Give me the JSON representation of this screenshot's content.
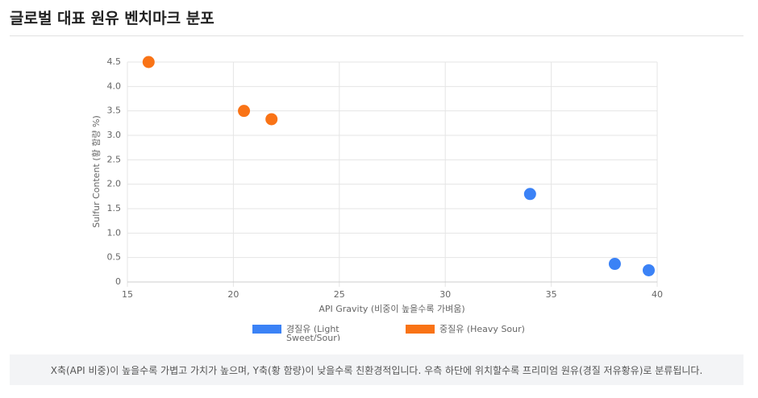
{
  "title": "글로벌 대표 원유 벤치마크 분포",
  "chart_data": {
    "type": "scatter",
    "xlabel": "API Gravity (비중이 높을수록 가벼움)",
    "ylabel": "Sulfur Content (황 함량 %)",
    "xlim": [
      15,
      40
    ],
    "xticks": [
      15,
      20,
      25,
      30,
      35,
      40
    ],
    "ylim": [
      0,
      4.5
    ],
    "yticks": [
      0,
      0.5,
      {
        "value": 1,
        "label": "1.0"
      },
      1.5,
      {
        "value": 2,
        "label": "2.0"
      },
      2.5,
      {
        "value": 3,
        "label": "3.0"
      },
      3.5,
      {
        "value": 4,
        "label": "4.0"
      },
      4.5
    ],
    "grid": true,
    "series": [
      {
        "name": "경질유 (Light Sweet/Sour)",
        "color": "#3b82f6",
        "x": [
          34,
          38,
          39.6
        ],
        "values": [
          1.8,
          0.37,
          0.24
        ]
      },
      {
        "name": "중질유 (Heavy Sour)",
        "color": "#f97316",
        "x": [
          16,
          20.5,
          21.8
        ],
        "values": [
          4.5,
          3.5,
          3.33
        ]
      }
    ]
  },
  "note": "X축(API 비중)이 높을수록 가볍고 가치가 높으며, Y축(황 함량)이 낮을수록 친환경적입니다. 우측 하단에 위치할수록 프리미엄 원유(경질 저유황유)로 분류됩니다."
}
